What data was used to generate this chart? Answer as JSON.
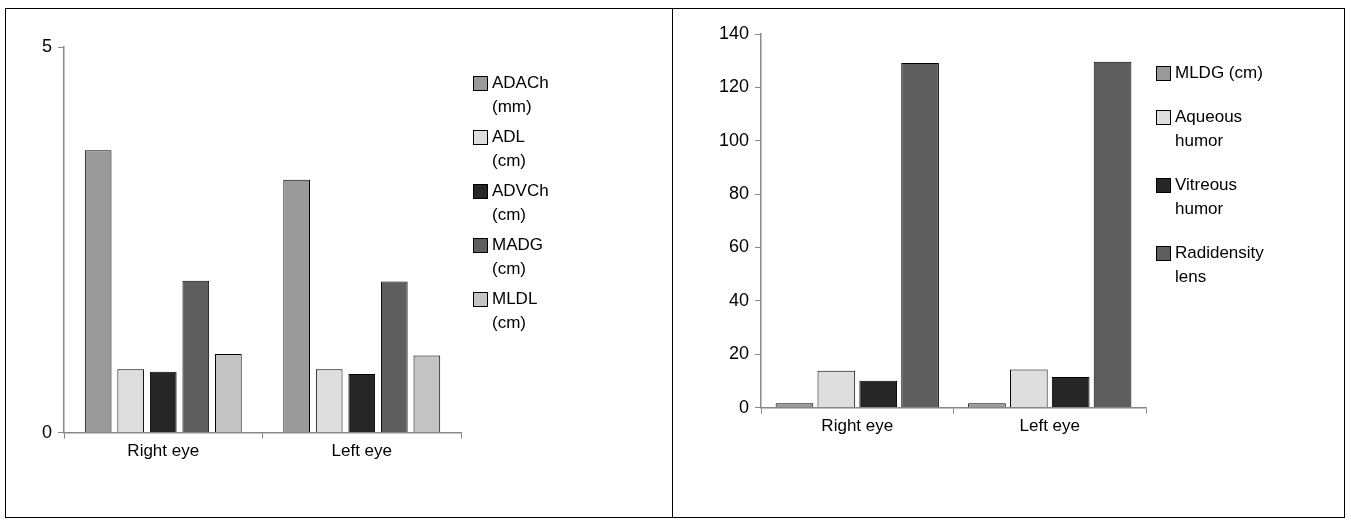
{
  "chart_data": [
    {
      "type": "bar",
      "categories": [
        "Right eye",
        "Left eye"
      ],
      "ylim": [
        0,
        5
      ],
      "yticks": [
        0,
        5
      ],
      "grid": false,
      "legend": "right",
      "series": [
        {
          "name": "ADACh (mm)",
          "color": "#9a9a9a",
          "values": [
            3.66,
            3.28
          ]
        },
        {
          "name": "ADL (cm)",
          "color": "#dedede",
          "values": [
            0.82,
            0.82
          ]
        },
        {
          "name": "ADVCh (cm)",
          "color": "#262626",
          "values": [
            0.79,
            0.76
          ]
        },
        {
          "name": "MADG (cm)",
          "color": "#5e5e5e",
          "values": [
            1.97,
            1.96
          ]
        },
        {
          "name": "MLDL (cm)",
          "color": "#c4c4c4",
          "values": [
            1.02,
            1.0
          ]
        }
      ]
    },
    {
      "type": "bar",
      "categories": [
        "Right eye",
        "Left eye"
      ],
      "ylim": [
        0,
        140
      ],
      "yticks": [
        0,
        20,
        40,
        60,
        80,
        100,
        120,
        140
      ],
      "grid": false,
      "legend": "right",
      "series": [
        {
          "name": "MLDG (cm)",
          "color": "#9a9a9a",
          "values": [
            1.6,
            1.6
          ]
        },
        {
          "name": "Aqueous humor",
          "color": "#dedede",
          "values": [
            13.8,
            14.3
          ]
        },
        {
          "name": "Vitreous humor",
          "color": "#262626",
          "values": [
            10.1,
            11.5
          ]
        },
        {
          "name": "Radidensity lens",
          "color": "#5e5e5e",
          "values": [
            129.1,
            129.6
          ]
        }
      ]
    }
  ]
}
